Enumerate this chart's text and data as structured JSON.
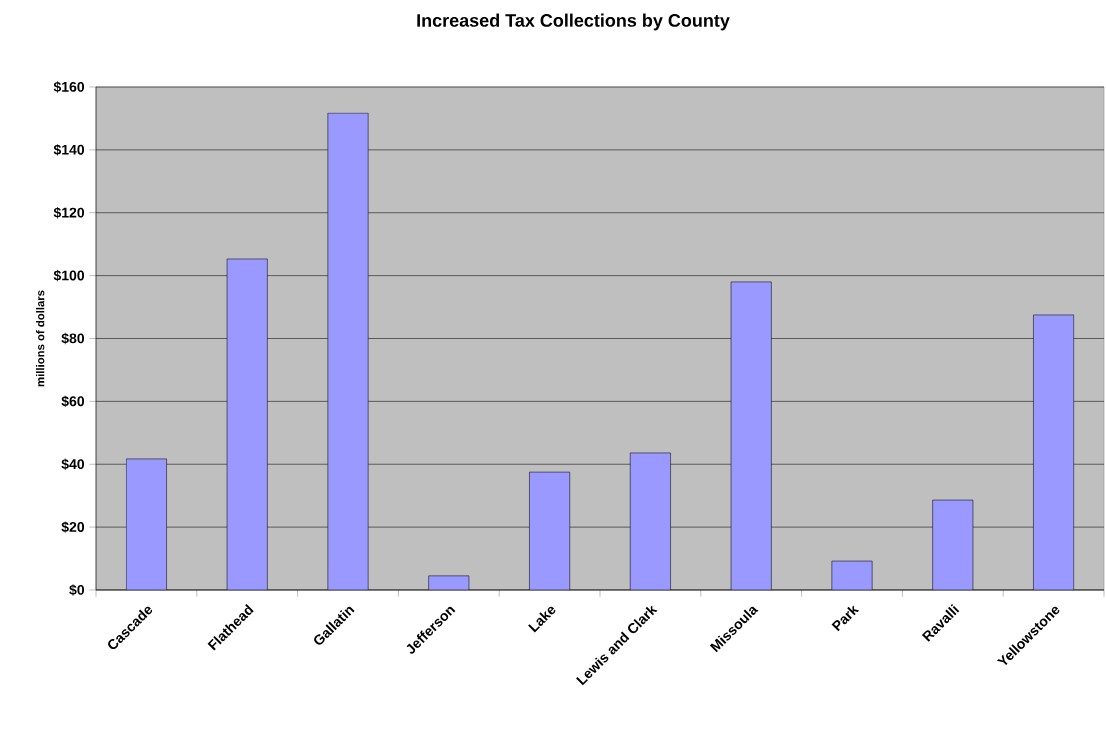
{
  "chart_data": {
    "type": "bar",
    "title": "Increased Tax Collections by County",
    "ylabel": "millions of dollars",
    "categories": [
      "Cascade",
      "Flathead",
      "Gallatin",
      "Jefferson",
      "Lake",
      "Lewis and Clark",
      "Missoula",
      "Park",
      "Ravalli",
      "Yellowstone"
    ],
    "values": [
      41.7,
      105.3,
      151.7,
      4.5,
      37.5,
      43.6,
      98,
      9.2,
      28.6,
      87.5
    ],
    "color": "#9999ff",
    "ylim": [
      0,
      160
    ],
    "yticks": [
      {
        "value": 0,
        "label": "$0"
      },
      {
        "value": 20,
        "label": "$20"
      },
      {
        "value": 40,
        "label": "$40"
      },
      {
        "value": 60,
        "label": "$60"
      },
      {
        "value": 80,
        "label": "$80"
      },
      {
        "value": 100,
        "label": "$100"
      },
      {
        "value": 120,
        "label": "$120"
      },
      {
        "value": 140,
        "label": "$140"
      },
      {
        "value": 160,
        "label": "$160"
      }
    ],
    "grid": "y"
  }
}
